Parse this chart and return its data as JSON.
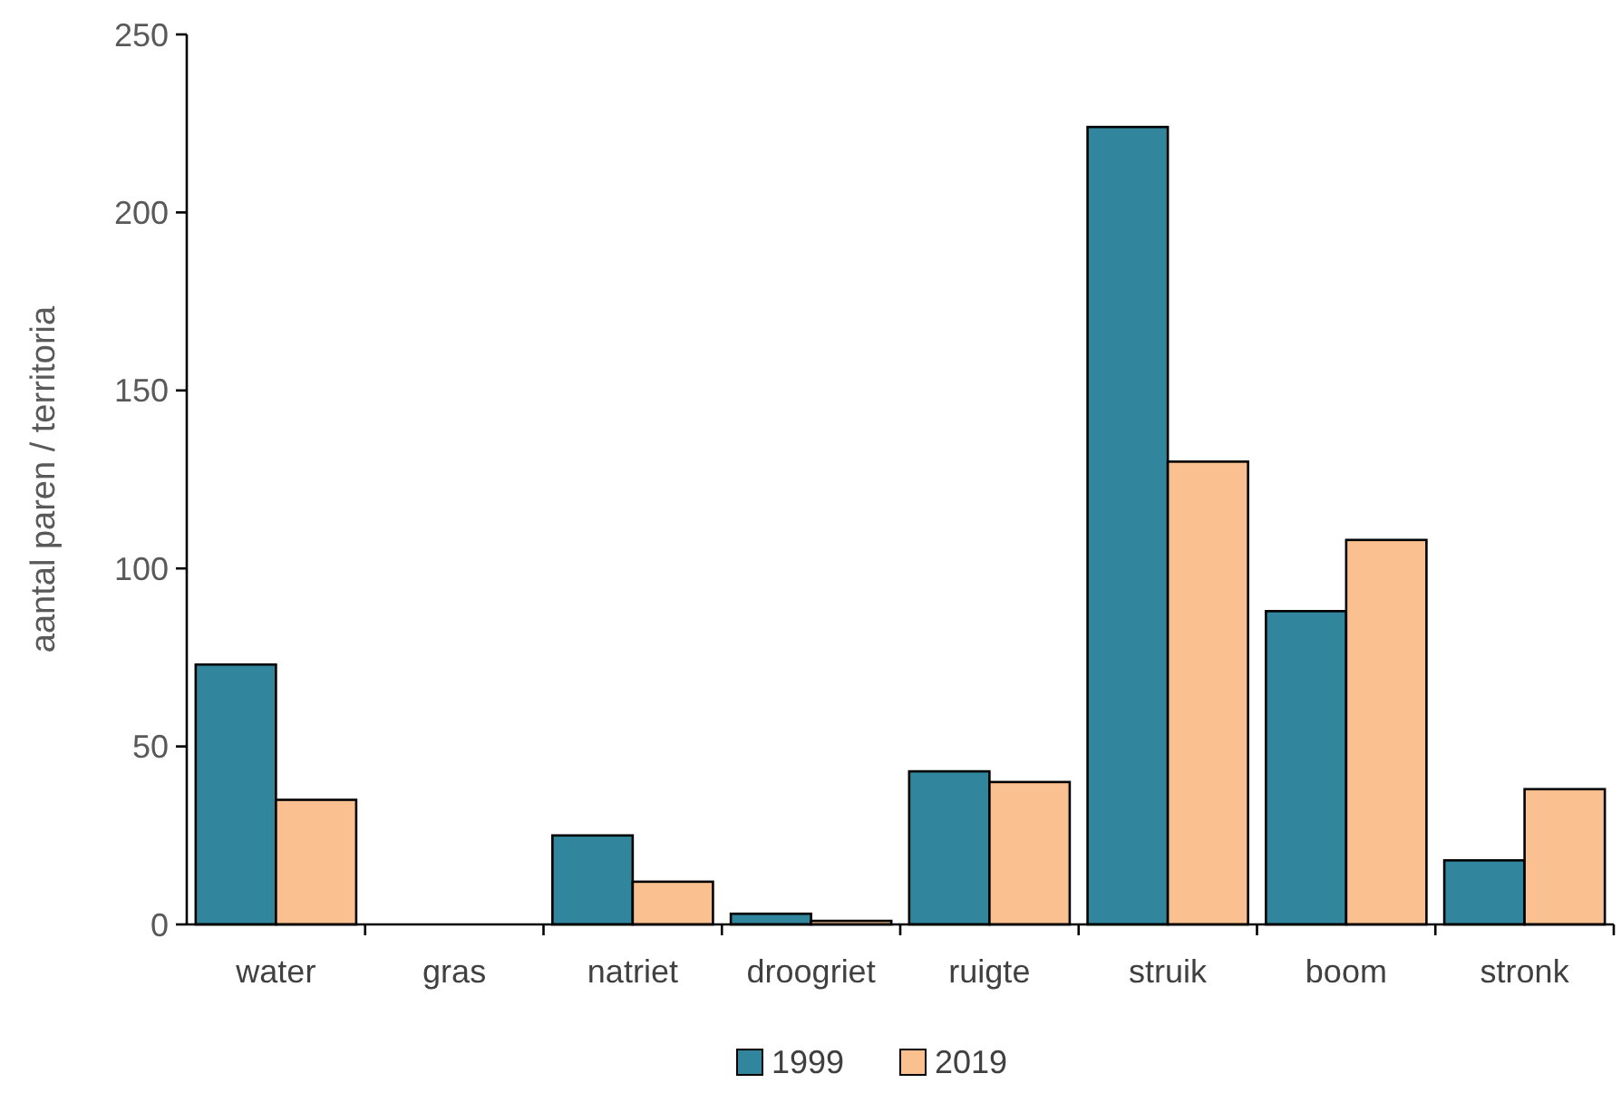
{
  "chart_data": {
    "type": "bar",
    "ylabel": "aantal paren / territoria",
    "categories": [
      "water",
      "gras",
      "natriet",
      "droogriet",
      "ruigte",
      "struik",
      "boom",
      "stronk"
    ],
    "series": [
      {
        "name": "1999",
        "color": "#31859c",
        "values": [
          73,
          0,
          25,
          3,
          43,
          224,
          88,
          18
        ]
      },
      {
        "name": "2019",
        "color": "#fac090",
        "values": [
          35,
          0,
          12,
          1,
          40,
          130,
          108,
          38
        ]
      }
    ],
    "ylim": [
      0,
      250
    ],
    "yticks": [
      0,
      50,
      100,
      150,
      200,
      250
    ],
    "grid": false,
    "legend": "bottom"
  }
}
